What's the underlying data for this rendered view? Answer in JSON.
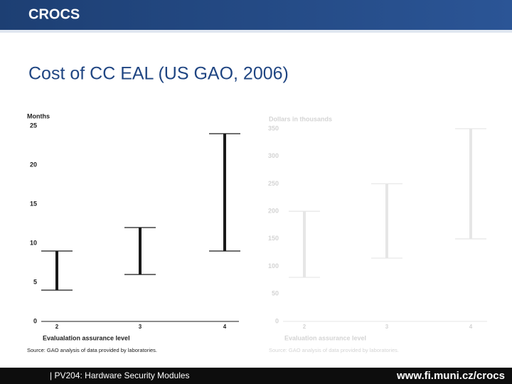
{
  "header": {
    "logo": "CROCS",
    "title": "Cost of CC EAL (US GAO, 2006)"
  },
  "footer": {
    "course": "| PV204: Hardware Security Modules",
    "url": "www.fi.muni.cz/crocs"
  },
  "chart_data": [
    {
      "type": "range",
      "ylabel": "Months",
      "xlabel": "Evalualation assurance level",
      "source": "Source: GAO analysis of data provided by laboratories.",
      "categories": [
        "2",
        "3",
        "4"
      ],
      "low": [
        4,
        6,
        9
      ],
      "high": [
        9,
        12,
        24
      ],
      "color": "#1a1a1a",
      "ylim": [
        0,
        25
      ],
      "yticks": [
        0,
        5,
        10,
        15,
        20,
        25
      ]
    },
    {
      "type": "range",
      "ylabel": "Dollars in thousands",
      "xlabel": "Evaluation assurance level",
      "source": "Source: GAO analysis of data provided by laboratories.",
      "categories": [
        "2",
        "3",
        "4"
      ],
      "low": [
        80,
        115,
        150
      ],
      "high": [
        200,
        250,
        350
      ],
      "color": "#e6e6e6",
      "ylim": [
        0,
        350
      ],
      "yticks": [
        0,
        50,
        100,
        150,
        200,
        250,
        300,
        350
      ]
    }
  ]
}
